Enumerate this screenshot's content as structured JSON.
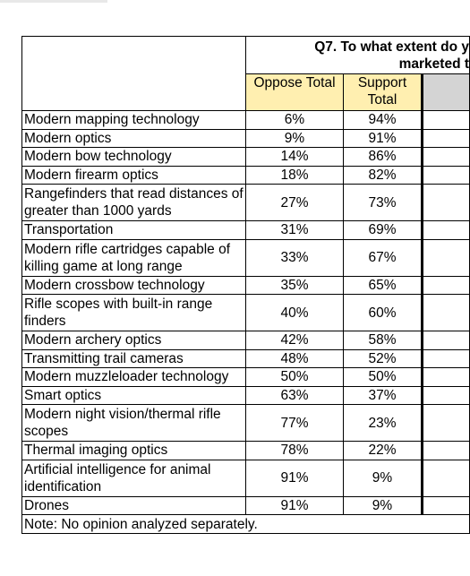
{
  "question": {
    "line1": "Q7. To what extent do y",
    "line2": "marketed t"
  },
  "columns": {
    "oppose": "Oppose Total",
    "support": "Support Total"
  },
  "rows": [
    {
      "label": "Modern mapping technology",
      "oppose": "6%",
      "support": "94%"
    },
    {
      "label": "Modern optics",
      "oppose": "9%",
      "support": "91%"
    },
    {
      "label": "Modern bow technology",
      "oppose": "14%",
      "support": "86%"
    },
    {
      "label": "Modern firearm optics",
      "oppose": "18%",
      "support": "82%"
    },
    {
      "label": "Rangefinders that read distances of greater than 1000 yards",
      "oppose": "27%",
      "support": "73%"
    },
    {
      "label": "Transportation",
      "oppose": "31%",
      "support": "69%"
    },
    {
      "label": "Modern rifle cartridges capable of killing game at long range",
      "oppose": "33%",
      "support": "67%"
    },
    {
      "label": "Modern crossbow technology",
      "oppose": "35%",
      "support": "65%"
    },
    {
      "label": "Rifle scopes with built-in range finders",
      "oppose": "40%",
      "support": "60%"
    },
    {
      "label": "Modern archery optics",
      "oppose": "42%",
      "support": "58%"
    },
    {
      "label": "Transmitting trail cameras",
      "oppose": "48%",
      "support": "52%"
    },
    {
      "label": "Modern muzzleloader technology",
      "oppose": "50%",
      "support": "50%"
    },
    {
      "label": "Smart optics",
      "oppose": "63%",
      "support": "37%"
    },
    {
      "label": "Modern night vision/thermal rifle scopes",
      "oppose": "77%",
      "support": "23%"
    },
    {
      "label": "Thermal imaging optics",
      "oppose": "78%",
      "support": "22%"
    },
    {
      "label": "Artificial intelligence for animal identification",
      "oppose": "91%",
      "support": "9%"
    },
    {
      "label": "Drones",
      "oppose": "91%",
      "support": "9%"
    }
  ],
  "note": "Note: No opinion analyzed separately."
}
